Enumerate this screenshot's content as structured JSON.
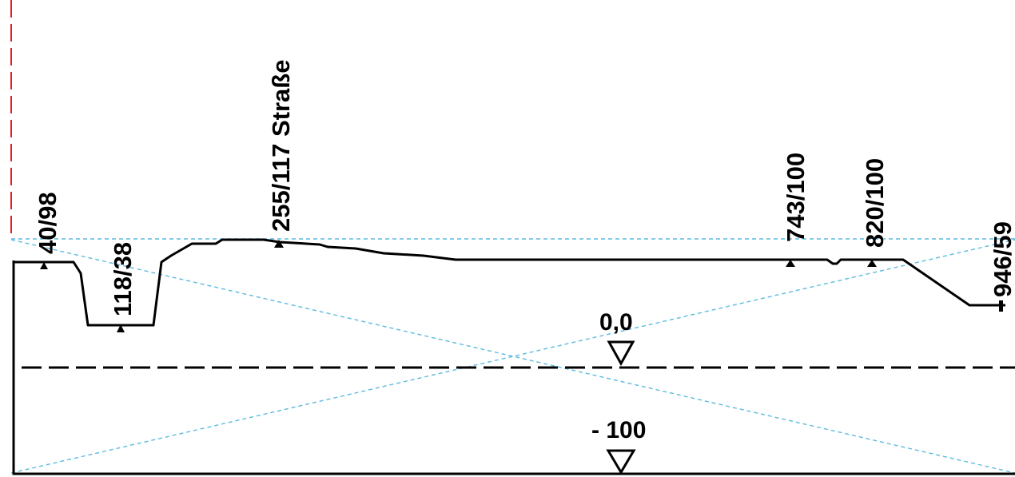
{
  "profile": {
    "points": [
      {
        "label": "40/98"
      },
      {
        "label": "118/38"
      },
      {
        "label": "255/117 Straße"
      },
      {
        "label": "743/100"
      },
      {
        "label": "820/100"
      },
      {
        "label": "946/59"
      }
    ],
    "levels": [
      {
        "label": "0,0"
      },
      {
        "label": "- 100"
      }
    ]
  },
  "colors": {
    "profile_line": "#000000",
    "guide_lines": "#5bbbe0",
    "marker_line": "#e02020",
    "datum_line": "#000000"
  }
}
